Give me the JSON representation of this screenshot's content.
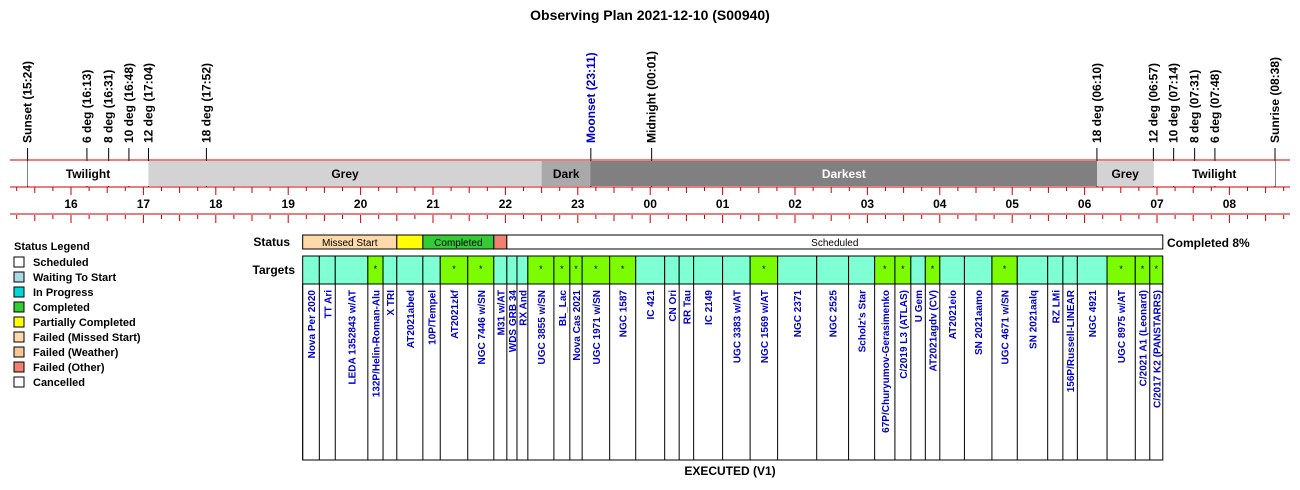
{
  "title": "Observing Plan 2021-12-10 (S00940)",
  "footer": "EXECUTED (V1)",
  "completed_text": "Completed 8%",
  "row_labels": {
    "status": "Status",
    "targets": "Targets"
  },
  "colors": {
    "twilight": "#ffffff",
    "grey": "#d3d3d3",
    "dark": "#a9a9a9",
    "darkest": "#808080",
    "red_line": "#cc0000",
    "moonset": "#0000cc",
    "scheduled": "#ffffff",
    "waiting": "#add8e6",
    "in_progress": "#00d8d8",
    "completed": "#33cc33",
    "partial": "#ffff00",
    "missed": "#ffdaa8",
    "weather": "#f5c69a",
    "other": "#f08070",
    "cancelled": "#ffffff",
    "target_block": "#7fffd4",
    "target_done": "#7cfc00",
    "target_text": "#0000cc"
  },
  "legend": {
    "title": "Status Legend",
    "items": [
      {
        "label": "Scheduled",
        "color": "#ffffff"
      },
      {
        "label": "Waiting To Start",
        "color": "#add8e6"
      },
      {
        "label": "In Progress",
        "color": "#00d8d8"
      },
      {
        "label": "Completed",
        "color": "#33cc33"
      },
      {
        "label": "Partially Completed",
        "color": "#ffff00"
      },
      {
        "label": "Failed (Missed Start)",
        "color": "#ffdaa8"
      },
      {
        "label": "Failed (Weather)",
        "color": "#f5c69a"
      },
      {
        "label": "Failed (Other)",
        "color": "#f08070"
      },
      {
        "label": "Cancelled",
        "color": "#ffffff"
      }
    ]
  },
  "chart_data": {
    "type": "timeline",
    "x_unit": "hours (local time, after 24 = next morning)",
    "x_range": [
      15.1,
      32.95
    ],
    "hour_ticks": [
      "16",
      "17",
      "18",
      "19",
      "20",
      "21",
      "22",
      "23",
      "00",
      "01",
      "02",
      "03",
      "04",
      "05",
      "06",
      "07",
      "08"
    ],
    "events": [
      {
        "label": "Sunset (15:24)",
        "t": 15.4,
        "color": "#000000"
      },
      {
        "label": "6 deg (16:13)",
        "t": 16.22,
        "color": "#000000"
      },
      {
        "label": "8 deg (16:31)",
        "t": 16.52,
        "color": "#000000"
      },
      {
        "label": "10 deg (16:48)",
        "t": 16.8,
        "color": "#000000"
      },
      {
        "label": "12 deg (17:04)",
        "t": 17.07,
        "color": "#000000"
      },
      {
        "label": "18 deg (17:52)",
        "t": 17.87,
        "color": "#000000"
      },
      {
        "label": "Moonset (23:11)",
        "t": 23.18,
        "color": "#0000cc"
      },
      {
        "label": "Midnight (00:01)",
        "t": 24.02,
        "color": "#000000"
      },
      {
        "label": "18 deg (06:10)",
        "t": 30.17,
        "color": "#000000"
      },
      {
        "label": "12 deg (06:57)",
        "t": 30.95,
        "color": "#000000"
      },
      {
        "label": "10 deg (07:14)",
        "t": 31.23,
        "color": "#000000"
      },
      {
        "label": "8 deg (07:31)",
        "t": 31.52,
        "color": "#000000"
      },
      {
        "label": "6 deg (07:48)",
        "t": 31.8,
        "color": "#000000"
      },
      {
        "label": "Sunrise (08:38)",
        "t": 32.63,
        "color": "#000000"
      }
    ],
    "sky_periods": [
      {
        "label": "Twilight",
        "start": 15.4,
        "end": 17.07,
        "color": "#ffffff"
      },
      {
        "label": "Grey",
        "start": 17.07,
        "end": 22.5,
        "color": "#d3d3d3"
      },
      {
        "label": "Dark",
        "start": 22.5,
        "end": 23.18,
        "color": "#a9a9a9"
      },
      {
        "label": "Darkest",
        "start": 23.18,
        "end": 30.17,
        "color": "#808080"
      },
      {
        "label": "Grey",
        "start": 30.17,
        "end": 30.95,
        "color": "#d3d3d3"
      },
      {
        "label": "Twilight",
        "start": 30.95,
        "end": 32.63,
        "color": "#ffffff"
      }
    ],
    "status_segments": [
      {
        "label": "Missed Start",
        "start": 19.2,
        "end": 20.5,
        "color": "#ffdaa8"
      },
      {
        "label": "",
        "start": 20.5,
        "end": 20.86,
        "color": "#ffff00"
      },
      {
        "label": "Completed",
        "start": 20.86,
        "end": 21.84,
        "color": "#33cc33"
      },
      {
        "label": "",
        "start": 21.84,
        "end": 22.02,
        "color": "#f08070"
      },
      {
        "label": "Scheduled",
        "start": 22.02,
        "end": 31.08,
        "color": "#ffffff"
      }
    ],
    "targets": [
      {
        "name": "Nova Per 2020",
        "start": 19.2,
        "end": 19.43,
        "done": false
      },
      {
        "name": "TT Ari",
        "start": 19.43,
        "end": 19.65,
        "done": false
      },
      {
        "name": "LEDA 1352843 w/AT",
        "start": 19.65,
        "end": 20.1,
        "done": false
      },
      {
        "name": "132P/Helin-Roman-Alu",
        "start": 20.1,
        "end": 20.31,
        "done": true
      },
      {
        "name": "X TRI",
        "start": 20.31,
        "end": 20.5,
        "done": false
      },
      {
        "name": "AT2021abed",
        "start": 20.5,
        "end": 20.86,
        "done": false
      },
      {
        "name": "10P/Tempel",
        "start": 20.86,
        "end": 21.1,
        "done": false
      },
      {
        "name": "AT2021zkf",
        "start": 21.1,
        "end": 21.48,
        "done": true
      },
      {
        "name": "NGC 7446 w/SN",
        "start": 21.48,
        "end": 21.84,
        "done": true
      },
      {
        "name": "M31 w/AT",
        "start": 21.84,
        "end": 22.02,
        "done": false
      },
      {
        "name": "WDS GRB 34",
        "start": 22.02,
        "end": 22.16,
        "done": false
      },
      {
        "name": "RX And",
        "start": 22.16,
        "end": 22.31,
        "done": false
      },
      {
        "name": "UGC 3855 w/SN",
        "start": 22.31,
        "end": 22.67,
        "done": true
      },
      {
        "name": "BL_Lac",
        "start": 22.67,
        "end": 22.89,
        "done": true
      },
      {
        "name": "Nova Cas 2021",
        "start": 22.89,
        "end": 23.06,
        "done": true
      },
      {
        "name": "UGC 1971 w/SN",
        "start": 23.06,
        "end": 23.44,
        "done": true
      },
      {
        "name": "NGC 1587",
        "start": 23.44,
        "end": 23.8,
        "done": true
      },
      {
        "name": "IC 421",
        "start": 23.8,
        "end": 24.2,
        "done": false
      },
      {
        "name": "CN Ori",
        "start": 24.2,
        "end": 24.4,
        "done": false
      },
      {
        "name": "RR Tau",
        "start": 24.4,
        "end": 24.6,
        "done": false
      },
      {
        "name": "IC 2149",
        "start": 24.6,
        "end": 25.0,
        "done": false
      },
      {
        "name": "UGC 3383 w/AT",
        "start": 25.0,
        "end": 25.38,
        "done": false
      },
      {
        "name": "NGC 1569 w/AT",
        "start": 25.38,
        "end": 25.76,
        "done": true
      },
      {
        "name": "NGC 2371",
        "start": 25.76,
        "end": 26.3,
        "done": false
      },
      {
        "name": "NGC 2525",
        "start": 26.3,
        "end": 26.74,
        "done": false
      },
      {
        "name": "Scholz's Star",
        "start": 26.74,
        "end": 27.1,
        "done": false
      },
      {
        "name": "67P/Churyumov-Gerasimenko",
        "start": 27.1,
        "end": 27.38,
        "done": true
      },
      {
        "name": "C/2019 L3 (ATLAS)",
        "start": 27.38,
        "end": 27.6,
        "done": true
      },
      {
        "name": "U Gem",
        "start": 27.6,
        "end": 27.8,
        "done": false
      },
      {
        "name": "AT2021agdv (CV)",
        "start": 27.8,
        "end": 28.0,
        "done": true
      },
      {
        "name": "AT2021eio",
        "start": 28.0,
        "end": 28.34,
        "done": false
      },
      {
        "name": "SN 2021aamo",
        "start": 28.34,
        "end": 28.72,
        "done": false
      },
      {
        "name": "UGC 4671 w/SN",
        "start": 28.72,
        "end": 29.07,
        "done": true
      },
      {
        "name": "SN 2021aalq",
        "start": 29.07,
        "end": 29.49,
        "done": false
      },
      {
        "name": "RZ LMi",
        "start": 29.49,
        "end": 29.7,
        "done": false
      },
      {
        "name": "156P/Russell-LINEAR",
        "start": 29.7,
        "end": 29.9,
        "done": false
      },
      {
        "name": "NGC 4921",
        "start": 29.9,
        "end": 30.31,
        "done": false
      },
      {
        "name": "UGC 8975 w/AT",
        "start": 30.31,
        "end": 30.7,
        "done": true
      },
      {
        "name": "C/2021 A1 (Leonard)",
        "start": 30.7,
        "end": 30.9,
        "done": true
      },
      {
        "name": "C/2017 K2 (PANSTARRS)",
        "start": 30.9,
        "end": 31.08,
        "done": true
      }
    ],
    "done_marker": "*"
  }
}
